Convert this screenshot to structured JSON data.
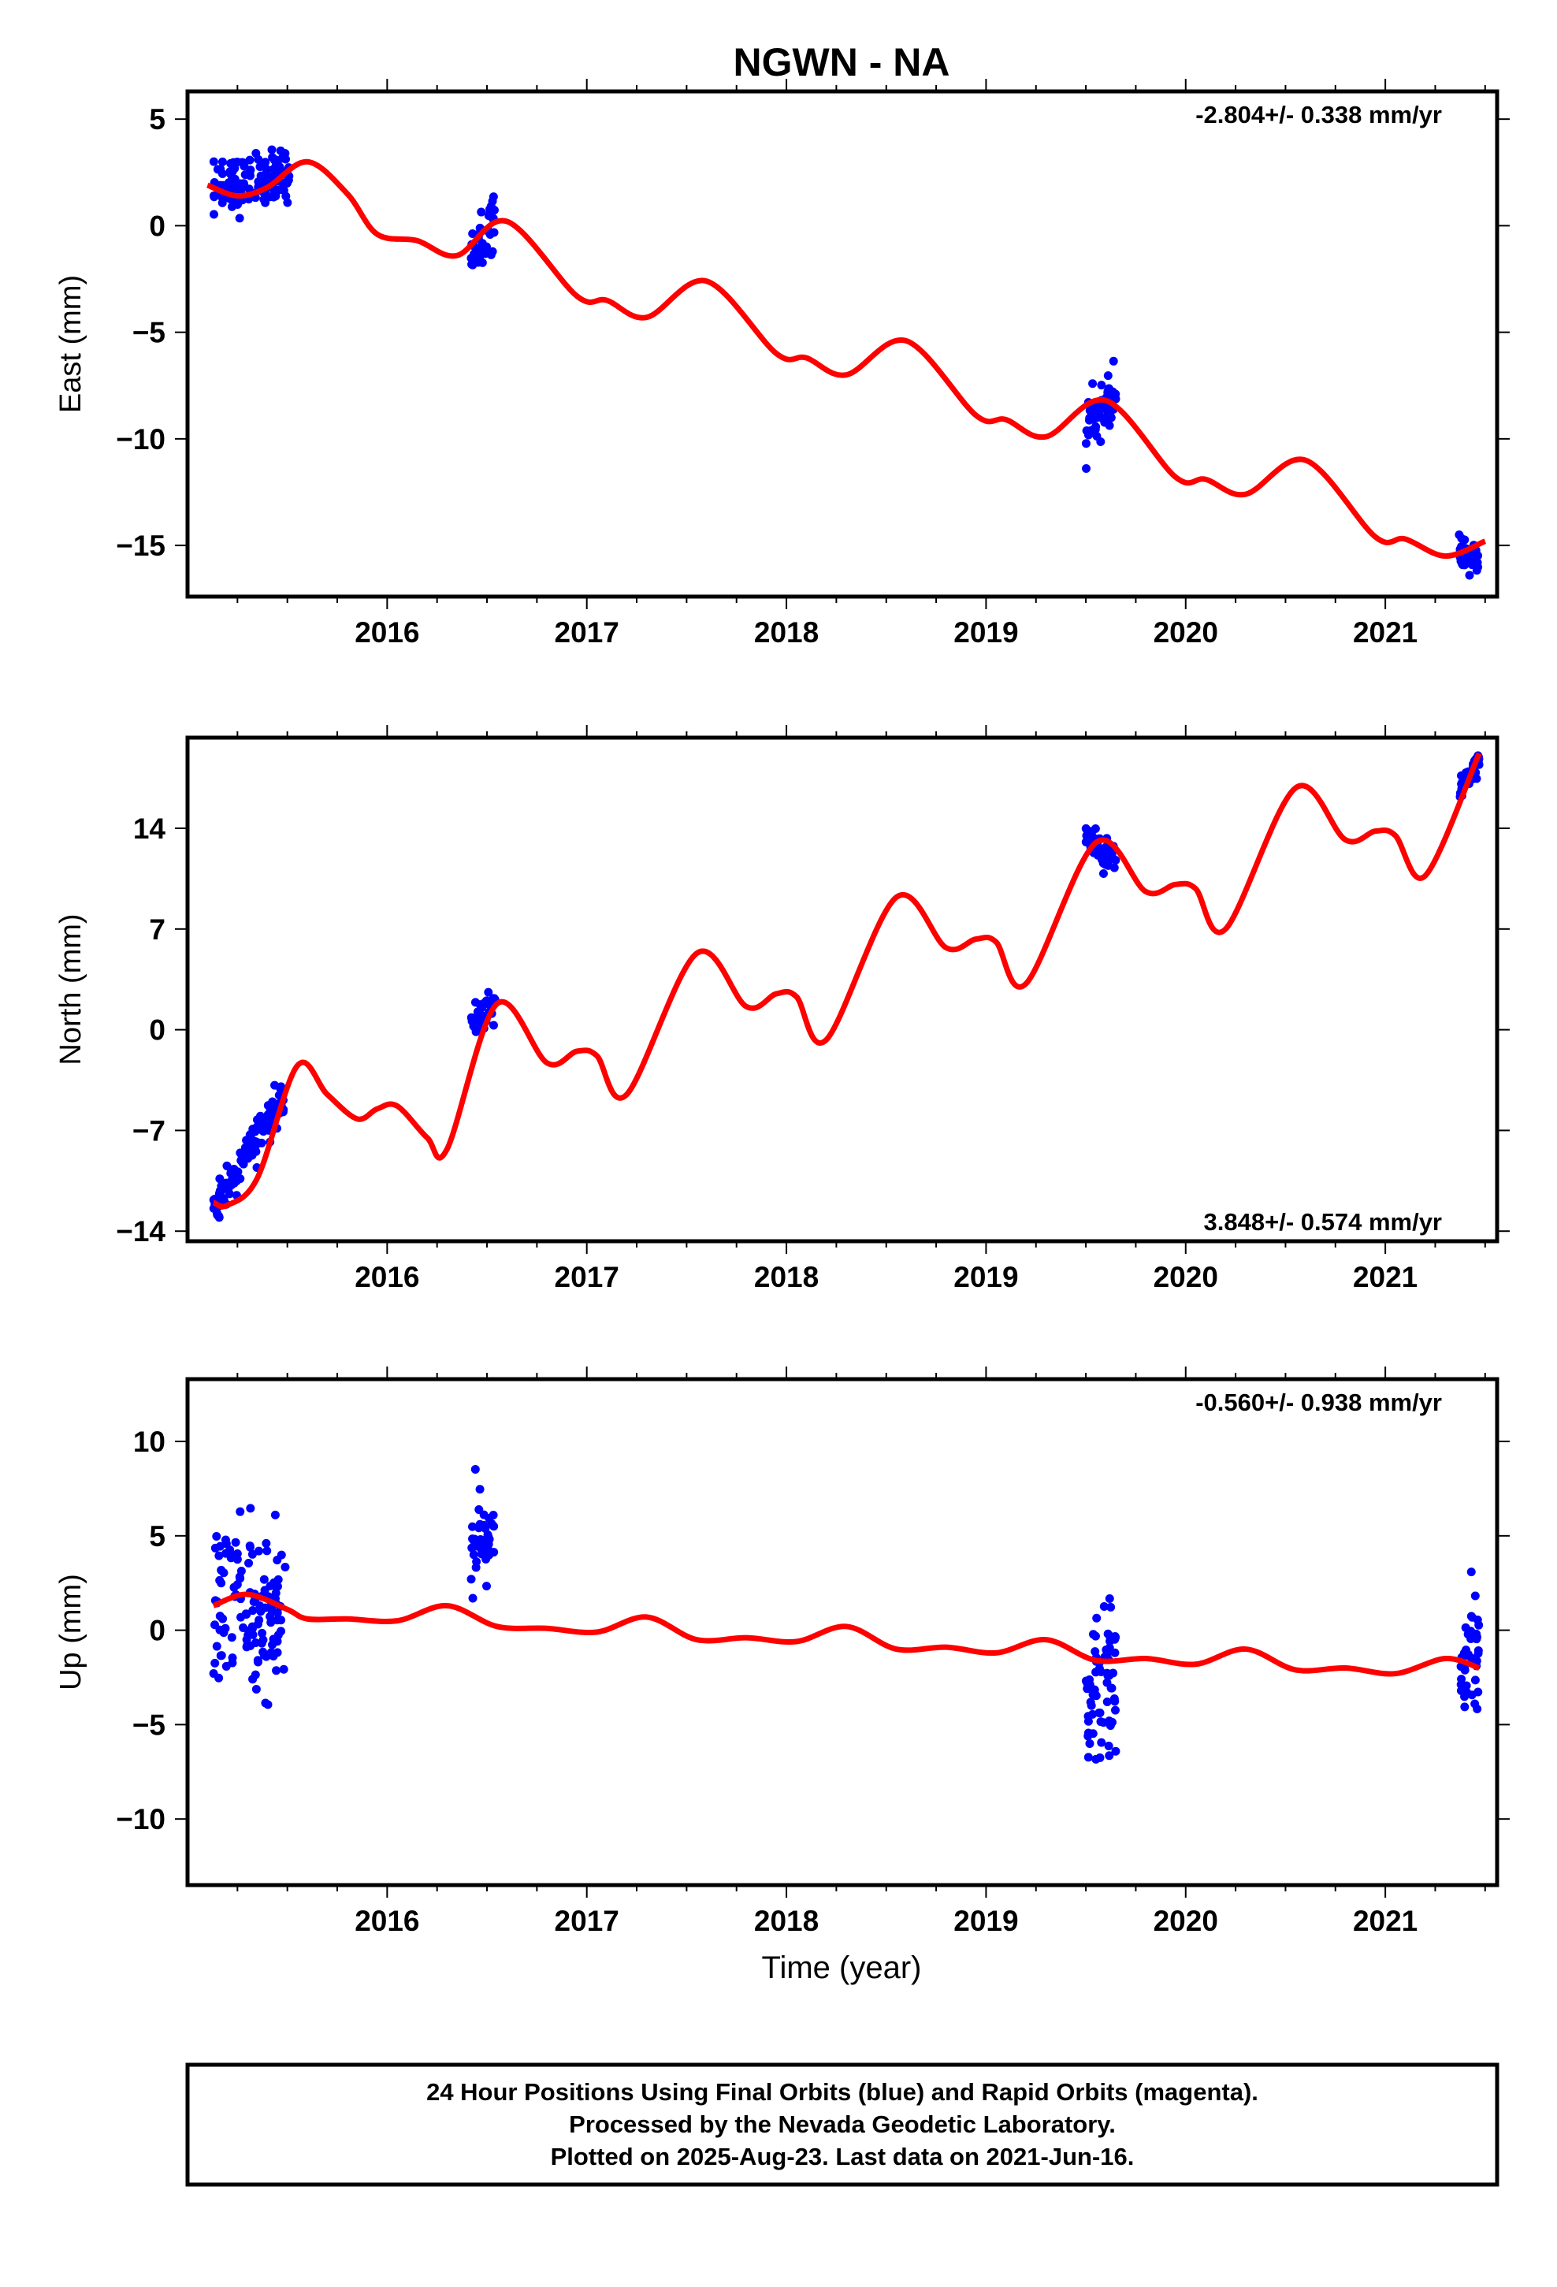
{
  "title": "NGWN - NA",
  "xlabel": "Time (year)",
  "footer": {
    "line1": "24 Hour Positions Using Final Orbits (blue) and Rapid Orbits (magenta).",
    "line2": "Processed by the Nevada Geodetic Laboratory.",
    "line3": "Plotted on 2025-Aug-23. Last data on 2021-Jun-16."
  },
  "colors": {
    "points": "#0000ff",
    "model": "#ff0000",
    "frame": "#000000"
  },
  "chart_data": [
    {
      "type": "scatter",
      "component": "east",
      "ylabel": "East (mm)",
      "rate": "-2.804+/- 0.338 mm/yr",
      "rate_position": "top-right",
      "xlim": [
        2015.0,
        2021.56
      ],
      "ylim": [
        -17.4,
        6.3
      ],
      "yticks": [
        5,
        0,
        -5,
        -10,
        -15
      ],
      "xticks": [
        2016,
        2017,
        2018,
        2019,
        2020,
        2021
      ],
      "model": [
        [
          2015.1,
          1.9
        ],
        [
          2015.25,
          1.4
        ],
        [
          2015.4,
          1.8
        ],
        [
          2015.6,
          3.0
        ],
        [
          2015.8,
          1.5
        ],
        [
          2015.95,
          -0.4
        ],
        [
          2016.15,
          -0.7
        ],
        [
          2016.35,
          -1.4
        ],
        [
          2016.6,
          0.2
        ],
        [
          2016.95,
          -3.3
        ],
        [
          2017.1,
          -3.5
        ],
        [
          2017.3,
          -4.3
        ],
        [
          2017.6,
          -2.6
        ],
        [
          2017.95,
          -6.0
        ],
        [
          2018.1,
          -6.2
        ],
        [
          2018.3,
          -7.0
        ],
        [
          2018.6,
          -5.4
        ],
        [
          2018.95,
          -8.9
        ],
        [
          2019.1,
          -9.1
        ],
        [
          2019.3,
          -9.9
        ],
        [
          2019.6,
          -8.2
        ],
        [
          2019.95,
          -11.8
        ],
        [
          2020.1,
          -11.9
        ],
        [
          2020.3,
          -12.6
        ],
        [
          2020.6,
          -11.0
        ],
        [
          2020.95,
          -14.6
        ],
        [
          2021.1,
          -14.7
        ],
        [
          2021.3,
          -15.5
        ],
        [
          2021.5,
          -14.8
        ]
      ],
      "clusters": [
        {
          "x0": 2015.13,
          "x1": 2015.51,
          "y0": 1.6,
          "y1": 2.6,
          "spread": 1.2,
          "n": 130
        },
        {
          "x0": 2016.42,
          "x1": 2016.54,
          "y0": -1.4,
          "y1": 0.3,
          "spread": 1.1,
          "n": 40
        },
        {
          "x0": 2019.5,
          "x1": 2019.65,
          "y0": -9.3,
          "y1": -8.0,
          "spread": 1.1,
          "n": 70
        },
        {
          "x0": 2021.37,
          "x1": 2021.47,
          "y0": -15.4,
          "y1": -15.7,
          "spread": 0.6,
          "n": 45
        }
      ]
    },
    {
      "type": "scatter",
      "component": "north",
      "ylabel": "North (mm)",
      "rate": "3.848+/- 0.574 mm/yr",
      "rate_position": "bottom-right",
      "xlim": [
        2015.0,
        2021.56
      ],
      "ylim": [
        -14.7,
        20.3
      ],
      "yticks": [
        14,
        7,
        0,
        -7,
        -14
      ],
      "xticks": [
        2016,
        2017,
        2018,
        2019,
        2020,
        2021
      ],
      "model": [
        [
          2015.13,
          -12.0
        ],
        [
          2015.2,
          -12.2
        ],
        [
          2015.35,
          -10.3
        ],
        [
          2015.55,
          -2.5
        ],
        [
          2015.7,
          -4.5
        ],
        [
          2015.85,
          -6.2
        ],
        [
          2015.95,
          -5.5
        ],
        [
          2016.05,
          -5.3
        ],
        [
          2016.2,
          -7.5
        ],
        [
          2016.3,
          -8.3
        ],
        [
          2016.55,
          1.8
        ],
        [
          2016.8,
          -2.3
        ],
        [
          2016.95,
          -1.5
        ],
        [
          2017.05,
          -1.8
        ],
        [
          2017.2,
          -4.5
        ],
        [
          2017.55,
          5.3
        ],
        [
          2017.8,
          1.6
        ],
        [
          2017.95,
          2.5
        ],
        [
          2018.05,
          2.3
        ],
        [
          2018.2,
          -0.7
        ],
        [
          2018.55,
          9.2
        ],
        [
          2018.8,
          5.7
        ],
        [
          2018.95,
          6.3
        ],
        [
          2019.05,
          6.1
        ],
        [
          2019.2,
          3.2
        ],
        [
          2019.55,
          13.0
        ],
        [
          2019.8,
          9.6
        ],
        [
          2019.95,
          10.1
        ],
        [
          2020.05,
          9.8
        ],
        [
          2020.2,
          7.0
        ],
        [
          2020.55,
          16.8
        ],
        [
          2020.8,
          13.2
        ],
        [
          2020.95,
          13.8
        ],
        [
          2021.05,
          13.5
        ],
        [
          2021.2,
          10.7
        ],
        [
          2021.47,
          19.2
        ]
      ],
      "clusters": [
        {
          "x0": 2015.13,
          "x1": 2015.49,
          "y0": -12.5,
          "y1": -4.5,
          "spread": 1.2,
          "n": 130
        },
        {
          "x0": 2016.42,
          "x1": 2016.54,
          "y0": 0.3,
          "y1": 1.8,
          "spread": 1.0,
          "n": 40
        },
        {
          "x0": 2019.5,
          "x1": 2019.65,
          "y0": 13.3,
          "y1": 11.8,
          "spread": 1.0,
          "n": 70
        },
        {
          "x0": 2021.37,
          "x1": 2021.47,
          "y0": 16.2,
          "y1": 18.8,
          "spread": 0.7,
          "n": 45
        }
      ]
    },
    {
      "type": "scatter",
      "component": "up",
      "ylabel": "Up (mm)",
      "rate": "-0.560+/- 0.938 mm/yr",
      "rate_position": "top-right",
      "xlim": [
        2015.0,
        2021.56
      ],
      "ylim": [
        -13.5,
        13.3
      ],
      "yticks": [
        10,
        5,
        0,
        -5,
        -10
      ],
      "xticks": [
        2016,
        2017,
        2018,
        2019,
        2020,
        2021
      ],
      "model": [
        [
          2015.13,
          1.3
        ],
        [
          2015.3,
          1.9
        ],
        [
          2015.5,
          1.1
        ],
        [
          2015.6,
          0.6
        ],
        [
          2015.8,
          0.6
        ],
        [
          2016.05,
          0.5
        ],
        [
          2016.3,
          1.3
        ],
        [
          2016.55,
          0.2
        ],
        [
          2016.8,
          0.1
        ],
        [
          2017.05,
          -0.1
        ],
        [
          2017.3,
          0.7
        ],
        [
          2017.55,
          -0.5
        ],
        [
          2017.8,
          -0.4
        ],
        [
          2018.05,
          -0.6
        ],
        [
          2018.3,
          0.2
        ],
        [
          2018.55,
          -1.0
        ],
        [
          2018.8,
          -0.9
        ],
        [
          2019.05,
          -1.2
        ],
        [
          2019.3,
          -0.5
        ],
        [
          2019.55,
          -1.6
        ],
        [
          2019.8,
          -1.5
        ],
        [
          2020.05,
          -1.8
        ],
        [
          2020.3,
          -1.0
        ],
        [
          2020.55,
          -2.1
        ],
        [
          2020.8,
          -2.0
        ],
        [
          2021.05,
          -2.3
        ],
        [
          2021.3,
          -1.5
        ],
        [
          2021.47,
          -2.0
        ]
      ],
      "clusters": [
        {
          "x0": 2015.13,
          "x1": 2015.49,
          "y0": 1.5,
          "y1": 1.0,
          "spread": 3.8,
          "n": 130
        },
        {
          "x0": 2016.42,
          "x1": 2016.54,
          "y0": 4.0,
          "y1": 5.0,
          "spread": 2.5,
          "n": 40
        },
        {
          "x0": 2019.5,
          "x1": 2019.65,
          "y0": -3.5,
          "y1": -2.5,
          "spread": 3.4,
          "n": 70
        },
        {
          "x0": 2021.37,
          "x1": 2021.47,
          "y0": -2.0,
          "y1": -1.0,
          "spread": 3.2,
          "n": 45
        }
      ]
    }
  ]
}
